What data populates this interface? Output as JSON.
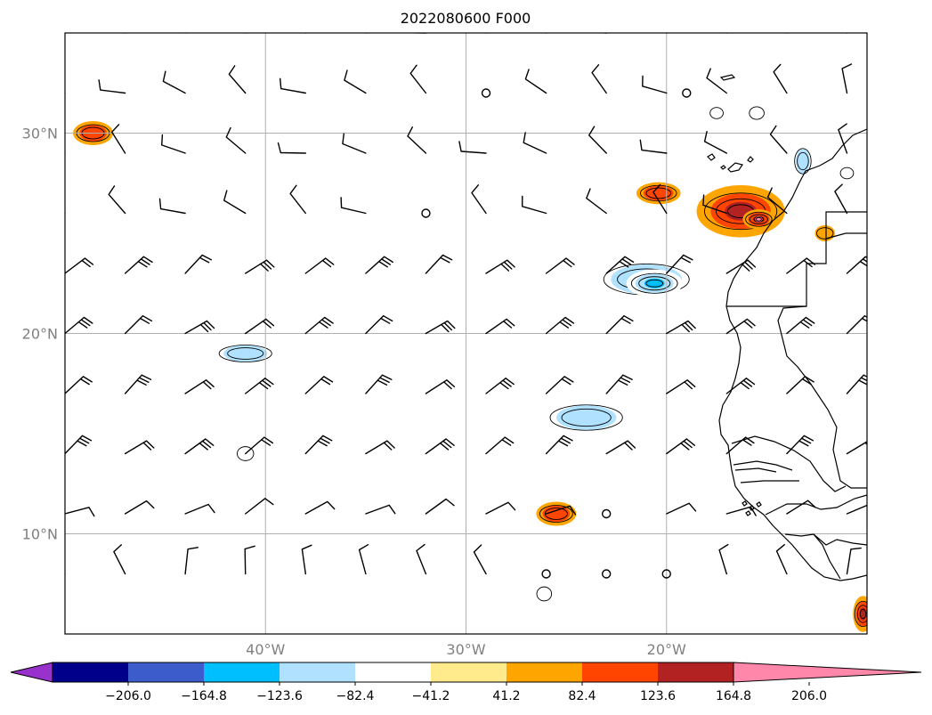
{
  "figure": {
    "title": "2022080600 F000"
  },
  "chart_data": {
    "type": "heatmap",
    "title": "2022080600 F000",
    "projection": "PlateCarree",
    "lon_range": [
      -50,
      -10
    ],
    "lat_range": [
      5,
      35
    ],
    "grid": true,
    "x_ticks": [
      {
        "value": -40,
        "label": "40°W"
      },
      {
        "value": -30,
        "label": "30°W"
      },
      {
        "value": -20,
        "label": "20°W"
      }
    ],
    "y_ticks": [
      {
        "value": 30,
        "label": "30°N"
      },
      {
        "value": 20,
        "label": "20°N"
      },
      {
        "value": 10,
        "label": "10°N"
      }
    ],
    "colorbar": {
      "orientation": "horizontal",
      "extend": "both",
      "levels": [
        -247.2,
        -206.0,
        -164.8,
        -123.6,
        -82.4,
        -41.2,
        41.2,
        82.4,
        123.6,
        164.8,
        206.0,
        247.2
      ],
      "tick_labels": [
        "−206.0",
        "−164.8",
        "−123.6",
        "−82.4",
        "−41.2",
        "41.2",
        "82.4",
        "123.6",
        "164.8",
        "206.0"
      ],
      "colors": [
        "#9932cc",
        "#00008b",
        "#3d5ccc",
        "#00bfff",
        "#b0e2ff",
        "#ffffff",
        "#ffeb8c",
        "#ffa500",
        "#ff4500",
        "#b22222",
        "#ff88aa"
      ]
    },
    "fill_regions": [
      {
        "lon": -48.6,
        "lat": 30.0,
        "rx": 1.0,
        "ry": 0.6,
        "level": 82.4
      },
      {
        "lon": -41.0,
        "lat": 19.0,
        "rx": 1.6,
        "ry": 0.6,
        "level": -82.4
      },
      {
        "lon": -41.0,
        "lat": 14.0,
        "rx": 0.5,
        "ry": 0.5,
        "level": -41.2
      },
      {
        "lon": -21.0,
        "lat": 22.7,
        "rx": 2.6,
        "ry": 1.1,
        "level": -82.4
      },
      {
        "lon": -20.6,
        "lat": 22.5,
        "rx": 1.4,
        "ry": 0.7,
        "level": -123.6
      },
      {
        "lon": -24.0,
        "lat": 15.8,
        "rx": 2.2,
        "ry": 0.9,
        "level": -82.4
      },
      {
        "lon": -25.5,
        "lat": 11.0,
        "rx": 1.0,
        "ry": 0.6,
        "level": 82.4
      },
      {
        "lon": -26.1,
        "lat": 7.0,
        "rx": 0.45,
        "ry": 0.5,
        "level": -41.2
      },
      {
        "lon": -20.4,
        "lat": 27.0,
        "rx": 1.1,
        "ry": 0.55,
        "level": 82.4
      },
      {
        "lon": -16.3,
        "lat": 26.1,
        "rx": 2.2,
        "ry": 1.3,
        "level": 123.6
      },
      {
        "lon": -15.4,
        "lat": 25.7,
        "rx": 0.8,
        "ry": 0.5,
        "level": 164.8
      },
      {
        "lon": -12.1,
        "lat": 25.0,
        "rx": 0.5,
        "ry": 0.4,
        "level": 41.2
      },
      {
        "lon": -17.5,
        "lat": 31.0,
        "rx": 0.4,
        "ry": 0.4,
        "level": -41.2
      },
      {
        "lon": -15.5,
        "lat": 31.0,
        "rx": 0.45,
        "ry": 0.45,
        "level": -41.2
      },
      {
        "lon": -13.2,
        "lat": 28.6,
        "rx": 0.5,
        "ry": 0.9,
        "level": -82.4
      },
      {
        "lon": -11.0,
        "lat": 28.0,
        "rx": 0.4,
        "ry": 0.4,
        "level": -41.2
      },
      {
        "lon": -10.2,
        "lat": 6.0,
        "rx": 0.5,
        "ry": 0.9,
        "level": 123.6
      }
    ],
    "calm_points": [
      {
        "lon": -29.0,
        "lat": 32.0
      },
      {
        "lon": -19.0,
        "lat": 32.0
      },
      {
        "lon": -32.0,
        "lat": 26.0
      },
      {
        "lon": -23.0,
        "lat": 11.0
      },
      {
        "lon": -26.0,
        "lat": 8.0
      },
      {
        "lon": -23.0,
        "lat": 8.0
      },
      {
        "lon": -20.0,
        "lat": 8.0
      }
    ],
    "wind_barbs": {
      "description": "Wind barbs on a 3-degree grid; northern rows from westerly/northerly quadrants, southern rows NE trades"
    }
  }
}
